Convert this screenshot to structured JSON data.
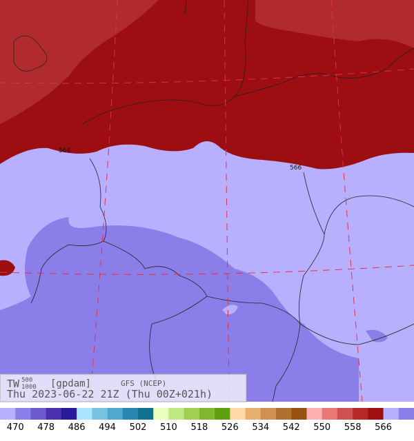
{
  "header": {
    "field": "TW",
    "level_top": "500",
    "level_bottom": "1000",
    "units": "[gpdam]",
    "model": "GFS (NCEP)",
    "valid": "Thu 2023-06-22 21Z (Thu 00Z+021h)"
  },
  "contour_labels": [
    "566",
    "566"
  ],
  "legend": {
    "colors": [
      "#b8b0ff",
      "#8c7ee8",
      "#6a5acd",
      "#4a30b0",
      "#2a1a9a",
      "#a8e4ff",
      "#78c4e0",
      "#50a8d0",
      "#2888b0",
      "#107090",
      "#e8ffc0",
      "#c0e880",
      "#a0d050",
      "#80b830",
      "#60a010",
      "#ffd8a8",
      "#e8b070",
      "#d09050",
      "#b07030",
      "#985010",
      "#ffb0b0",
      "#e87878",
      "#d05050",
      "#b82828",
      "#a01010",
      "#b8b0ff",
      "#8c7ee8"
    ],
    "labels": [
      "470",
      "478",
      "486",
      "494",
      "502",
      "510",
      "518",
      "526",
      "534",
      "542",
      "550",
      "558",
      "566"
    ]
  }
}
